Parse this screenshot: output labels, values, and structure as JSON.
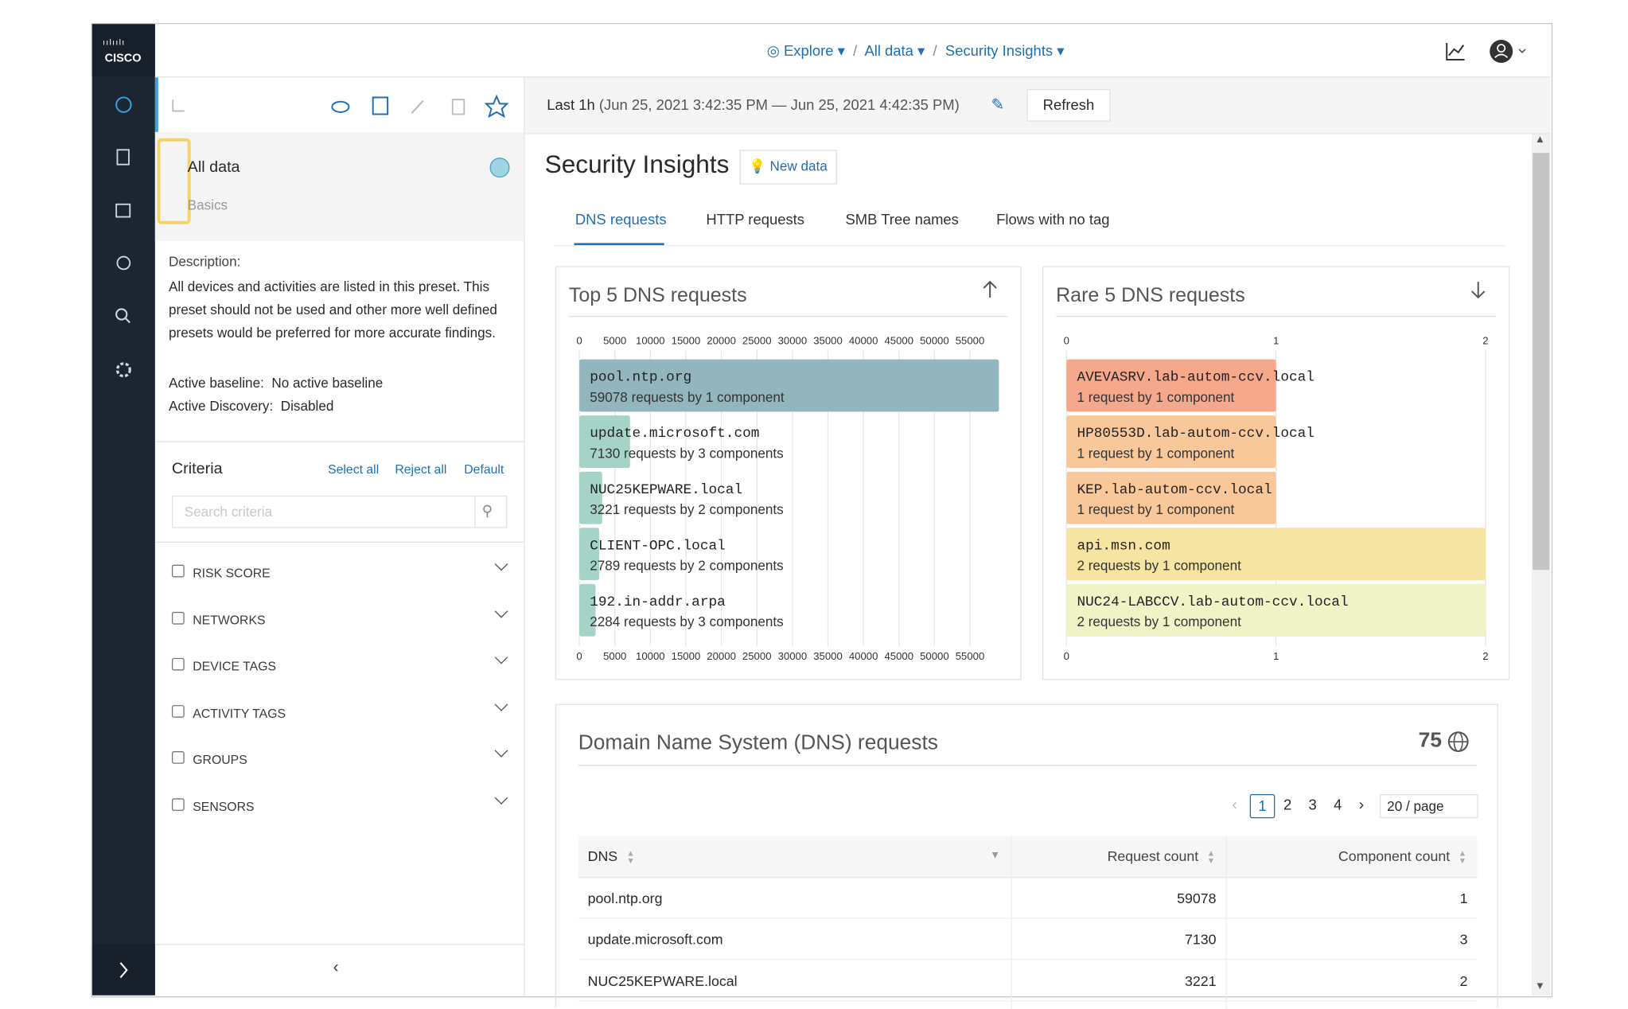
{
  "nav": {
    "breadcrumbs": [
      "Explore",
      "All data",
      "Security Insights"
    ],
    "logo": "CISCO"
  },
  "sidebar": {
    "preset_title": "All data",
    "preset_subtitle": "Basics",
    "description_label": "Description:",
    "description": "All devices and activities are listed in this preset. This preset should not be used and other more well defined presets would be preferred for more accurate findings.",
    "baseline_label": "Active baseline:",
    "baseline_value": "No active baseline",
    "discovery_label": "Active Discovery:",
    "discovery_value": "Disabled",
    "criteria_title": "Criteria",
    "criteria_actions": [
      "Select all",
      "Reject all",
      "Default"
    ],
    "search_placeholder": "Search criteria",
    "criteria": [
      "RISK SCORE",
      "NETWORKS",
      "DEVICE TAGS",
      "ACTIVITY TAGS",
      "GROUPS",
      "SENSORS"
    ]
  },
  "toolbar": {
    "time_range": "Last 1h",
    "time_detail": "(Jun 25, 2021 3:42:35 PM — Jun 25, 2021 4:42:35 PM)",
    "refresh": "Refresh"
  },
  "page": {
    "title": "Security Insights",
    "new_data": "New data",
    "tabs": [
      "DNS requests",
      "HTTP requests",
      "SMB Tree names",
      "Flows with no tag"
    ]
  },
  "top_chart": {
    "type": "bar",
    "title": "Top 5 DNS requests",
    "xlim": [
      0,
      59000
    ],
    "xticks": [
      0,
      5000,
      10000,
      15000,
      20000,
      25000,
      30000,
      35000,
      40000,
      45000,
      50000,
      55000
    ],
    "items": [
      {
        "name": "pool.ntp.org",
        "value": 59078,
        "value_label": "59078 requests by 1 component",
        "color": "#93b6be"
      },
      {
        "name": "update.microsoft.com",
        "value": 7130,
        "value_label": "7130 requests by 3 components",
        "color": "#a6d3c8"
      },
      {
        "name": "NUC25KEPWARE.local",
        "value": 3221,
        "value_label": "3221 requests by 2 components",
        "color": "#a6d3c8"
      },
      {
        "name": "CLIENT-OPC.local",
        "value": 2789,
        "value_label": "2789 requests by 2 components",
        "color": "#a6d3c8"
      },
      {
        "name": "192.in-addr.arpa",
        "value": 2284,
        "value_label": "2284 requests by 3 components",
        "color": "#a6d3c8"
      }
    ]
  },
  "rare_chart": {
    "type": "bar",
    "title": "Rare 5 DNS requests",
    "xlim": [
      0,
      2
    ],
    "xticks": [
      0,
      1,
      2
    ],
    "items": [
      {
        "name": "AVEVASRV.lab-autom-ccv.local",
        "value": 1,
        "value_label": "1 request by 1 component",
        "color": "#f6a88c"
      },
      {
        "name": "HP80553D.lab-autom-ccv.local",
        "value": 1,
        "value_label": "1 request by 1 component",
        "color": "#f9c89a"
      },
      {
        "name": "KEP.lab-autom-ccv.local",
        "value": 1,
        "value_label": "1 request by 1 component",
        "color": "#f9c89a"
      },
      {
        "name": "api.msn.com",
        "value": 2,
        "value_label": "2 requests by 1 component",
        "color": "#f5e4a2"
      },
      {
        "name": "NUC24-LABCCV.lab-autom-ccv.local",
        "value": 2,
        "value_label": "2 requests by 1 component",
        "color": "#eff3c6"
      }
    ]
  },
  "table": {
    "title": "Domain Name System (DNS) requests",
    "total": 75,
    "pages": [
      1,
      2,
      3,
      4
    ],
    "page_size": "20 / page",
    "columns": [
      "DNS",
      "Request count",
      "Component count"
    ],
    "rows": [
      [
        "pool.ntp.org",
        59078,
        1
      ],
      [
        "update.microsoft.com",
        7130,
        3
      ],
      [
        "NUC25KEPWARE.local",
        3221,
        2
      ]
    ]
  }
}
